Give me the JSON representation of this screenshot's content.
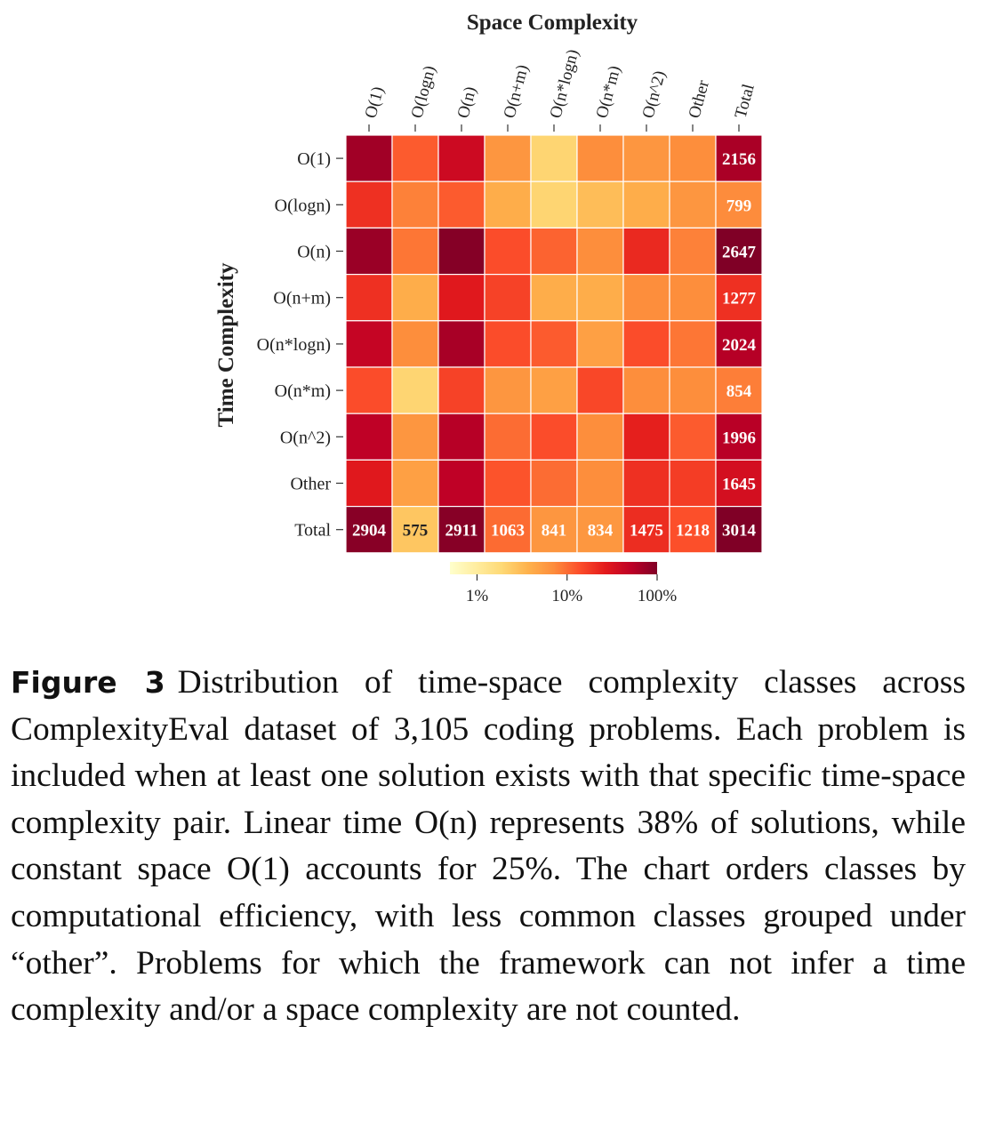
{
  "chart_data": {
    "type": "heatmap",
    "title": "Space Complexity",
    "xlabel": "Space Complexity",
    "ylabel": "Time Complexity",
    "x_categories": [
      "O(1)",
      "O(logn)",
      "O(n)",
      "O(n+m)",
      "O(n*logn)",
      "O(n*m)",
      "O(n^2)",
      "Other",
      "Total"
    ],
    "y_categories": [
      "O(1)",
      "O(logn)",
      "O(n)",
      "O(n+m)",
      "O(n*logn)",
      "O(n*m)",
      "O(n^2)",
      "Other",
      "Total"
    ],
    "row_totals": [
      2156,
      799,
      2647,
      1277,
      2024,
      854,
      1996,
      1645
    ],
    "column_totals": [
      2904,
      575,
      2911,
      1063,
      841,
      834,
      1475,
      1218,
      3014
    ],
    "cell_percent": [
      [
        70,
        12,
        40,
        6,
        2,
        7,
        6,
        7
      ],
      [
        20,
        8,
        12,
        4,
        2,
        3,
        4,
        6
      ],
      [
        75,
        9,
        95,
        14,
        11,
        7,
        22,
        8
      ],
      [
        20,
        4,
        28,
        16,
        4,
        4,
        7,
        7
      ],
      [
        45,
        7,
        65,
        14,
        12,
        5,
        14,
        9
      ],
      [
        14,
        2,
        16,
        6,
        5,
        15,
        7,
        7
      ],
      [
        50,
        6,
        55,
        10,
        14,
        7,
        25,
        12
      ],
      [
        28,
        5,
        50,
        13,
        10,
        7,
        20,
        17
      ]
    ],
    "colorbar": {
      "scale": "log",
      "range": [
        0.5,
        100
      ],
      "ticks": [
        1,
        10,
        100
      ],
      "tick_labels": [
        "1%",
        "10%",
        "100%"
      ],
      "colors": [
        "#ffffcc",
        "#ffeda0",
        "#fed976",
        "#feb24c",
        "#fd8d3c",
        "#fc4e2a",
        "#e31a1c",
        "#bd0026",
        "#800026"
      ]
    }
  },
  "caption": {
    "label": "Figure 3",
    "text": "Distribution of time-space complexity classes across ComplexityEval dataset of 3,105 coding problems. Each problem is included when at least one solution exists with that specific time-space complexity pair. Linear time O(n) represents 38% of solutions, while constant space O(1) accounts for 25%. The chart orders classes by computational efficiency, with less common classes grouped under “other”. Problems for which the framework can not infer a time complexity and/or a space complexity are not counted."
  }
}
